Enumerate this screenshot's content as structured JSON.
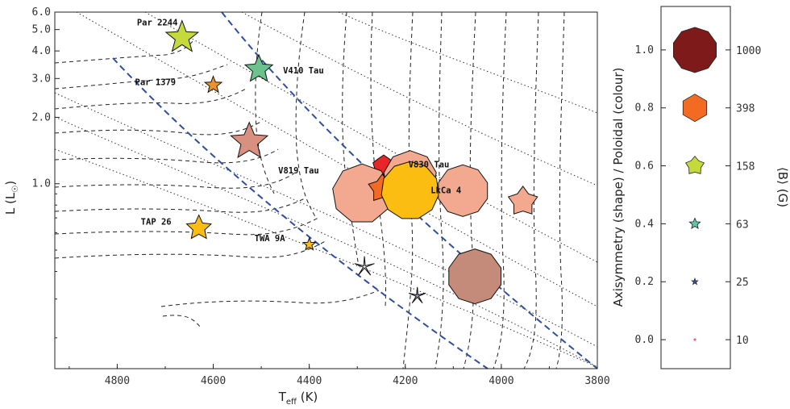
{
  "chart_data": [
    {
      "type": "scatter",
      "title": "",
      "xlabel": "T_eff (K)",
      "xlabel_main": "T",
      "xlabel_sub": "eff",
      "xlabel_unit": " (K)",
      "ylabel": "L (L☉)",
      "ylabel_main": "L (L",
      "ylabel_sun": "☉",
      "ylabel_close": ")",
      "x_reversed": true,
      "y_scale": "log",
      "xlim": [
        4930,
        3800
      ],
      "ylim": [
        0.145,
        6.0
      ],
      "x_ticks": [
        4800,
        4600,
        4400,
        4200,
        4000,
        3800
      ],
      "x_tick_labels": [
        "4800",
        "4600",
        "4400",
        "4200",
        "4000",
        "3800"
      ],
      "y_ticks": [
        1.0,
        2.0,
        3.0,
        4.0,
        5.0,
        6.0
      ],
      "y_tick_labels": [
        "1.0",
        "2.0",
        "3.0",
        "4.0",
        "5.0",
        "6.0"
      ],
      "stars": [
        {
          "label": "Par 2244",
          "teff": 4665,
          "lum": 4.6,
          "shape_n": 5,
          "shape_ratio": 0.42,
          "size": 21,
          "color": "#c4d93b"
        },
        {
          "label": "V410 Tau",
          "teff": 4505,
          "lum": 3.3,
          "shape_n": 5,
          "shape_ratio": 0.45,
          "size": 18,
          "color": "#6cc28c"
        },
        {
          "label": "Par 1379",
          "teff": 4600,
          "lum": 2.8,
          "shape_n": 5,
          "shape_ratio": 0.42,
          "size": 11,
          "color": "#f0922a"
        },
        {
          "label": "",
          "teff": 4525,
          "lum": 1.55,
          "shape_n": 5,
          "shape_ratio": 0.45,
          "size": 24,
          "color": "#d89080"
        },
        {
          "label": "",
          "teff": 4245,
          "lum": 1.2,
          "shape_n": 5,
          "shape_ratio": 0.82,
          "size": 14,
          "color": "#e8262a"
        },
        {
          "label": "V830 Tau",
          "teff": 4190,
          "lum": 1.07,
          "shape_n": 9,
          "shape_ratio": 1.0,
          "size": 33,
          "color": "#f2a98f"
        },
        {
          "label": "V819 Tau",
          "teff": 4290,
          "lum": 0.9,
          "shape_n": 9,
          "shape_ratio": 1.0,
          "size": 37,
          "color": "#f2a98f"
        },
        {
          "label": "",
          "teff": 4248,
          "lum": 0.95,
          "shape_n": 5,
          "shape_ratio": 0.62,
          "size": 18,
          "color": "#f36b22"
        },
        {
          "label": "",
          "teff": 4190,
          "lum": 0.93,
          "shape_n": 11,
          "shape_ratio": 1.0,
          "size": 36,
          "color": "#fbbd12"
        },
        {
          "label": "LkCa 4",
          "teff": 4080,
          "lum": 0.93,
          "shape_n": 10,
          "shape_ratio": 1.0,
          "size": 32,
          "color": "#f2a98f"
        },
        {
          "label": "",
          "teff": 3955,
          "lum": 0.83,
          "shape_n": 5,
          "shape_ratio": 0.62,
          "size": 19,
          "color": "#f2a98f"
        },
        {
          "label": "TAP 26",
          "teff": 4630,
          "lum": 0.63,
          "shape_n": 5,
          "shape_ratio": 0.48,
          "size": 16,
          "color": "#fbbd12"
        },
        {
          "label": "TWA 9A",
          "teff": 4400,
          "lum": 0.53,
          "shape_n": 5,
          "shape_ratio": 0.42,
          "size": 8,
          "color": "#fbbd12"
        },
        {
          "label": "",
          "teff": 4285,
          "lum": 0.42,
          "shape_n": 5,
          "shape_ratio": 0.12,
          "size": 13,
          "color": "#ffffff"
        },
        {
          "label": "",
          "teff": 4175,
          "lum": 0.31,
          "shape_n": 5,
          "shape_ratio": 0.15,
          "size": 11,
          "color": "#b7a6c8"
        },
        {
          "label": "",
          "teff": 4055,
          "lum": 0.38,
          "shape_n": 10,
          "shape_ratio": 1.0,
          "size": 34,
          "color": "#c48b7a"
        }
      ]
    },
    {
      "type": "legend-colorbar",
      "ylabel": "Axisymmetry (shape) / Poloidal (colour)",
      "right_label": "⟨B⟩ (G)",
      "ylim": [
        -0.1,
        1.15
      ],
      "y_ticks": [
        0.0,
        0.2,
        0.4,
        0.6,
        0.8,
        1.0
      ],
      "y_tick_labels": [
        "0.0",
        "0.2",
        "0.4",
        "0.6",
        "0.8",
        "1.0"
      ],
      "items": [
        {
          "value": 1.0,
          "B_label": "1000",
          "shape_n": 10,
          "shape_ratio": 1.0,
          "size": 28,
          "color": "#7e1a1a"
        },
        {
          "value": 0.8,
          "B_label": "398",
          "shape_n": 6,
          "shape_ratio": 1.0,
          "size": 17,
          "color": "#f36b22"
        },
        {
          "value": 0.6,
          "B_label": "158",
          "shape_n": 5,
          "shape_ratio": 0.65,
          "size": 12,
          "color": "#c4d93b"
        },
        {
          "value": 0.4,
          "B_label": "63",
          "shape_n": 5,
          "shape_ratio": 0.45,
          "size": 7,
          "color": "#5fc6a8"
        },
        {
          "value": 0.2,
          "B_label": "25",
          "shape_n": 5,
          "shape_ratio": 0.4,
          "size": 4,
          "color": "#3b5bb0"
        },
        {
          "value": 0.0,
          "B_label": "10",
          "shape_n": 5,
          "shape_ratio": 0.35,
          "size": 2,
          "color": "#d84a8c"
        }
      ]
    }
  ]
}
